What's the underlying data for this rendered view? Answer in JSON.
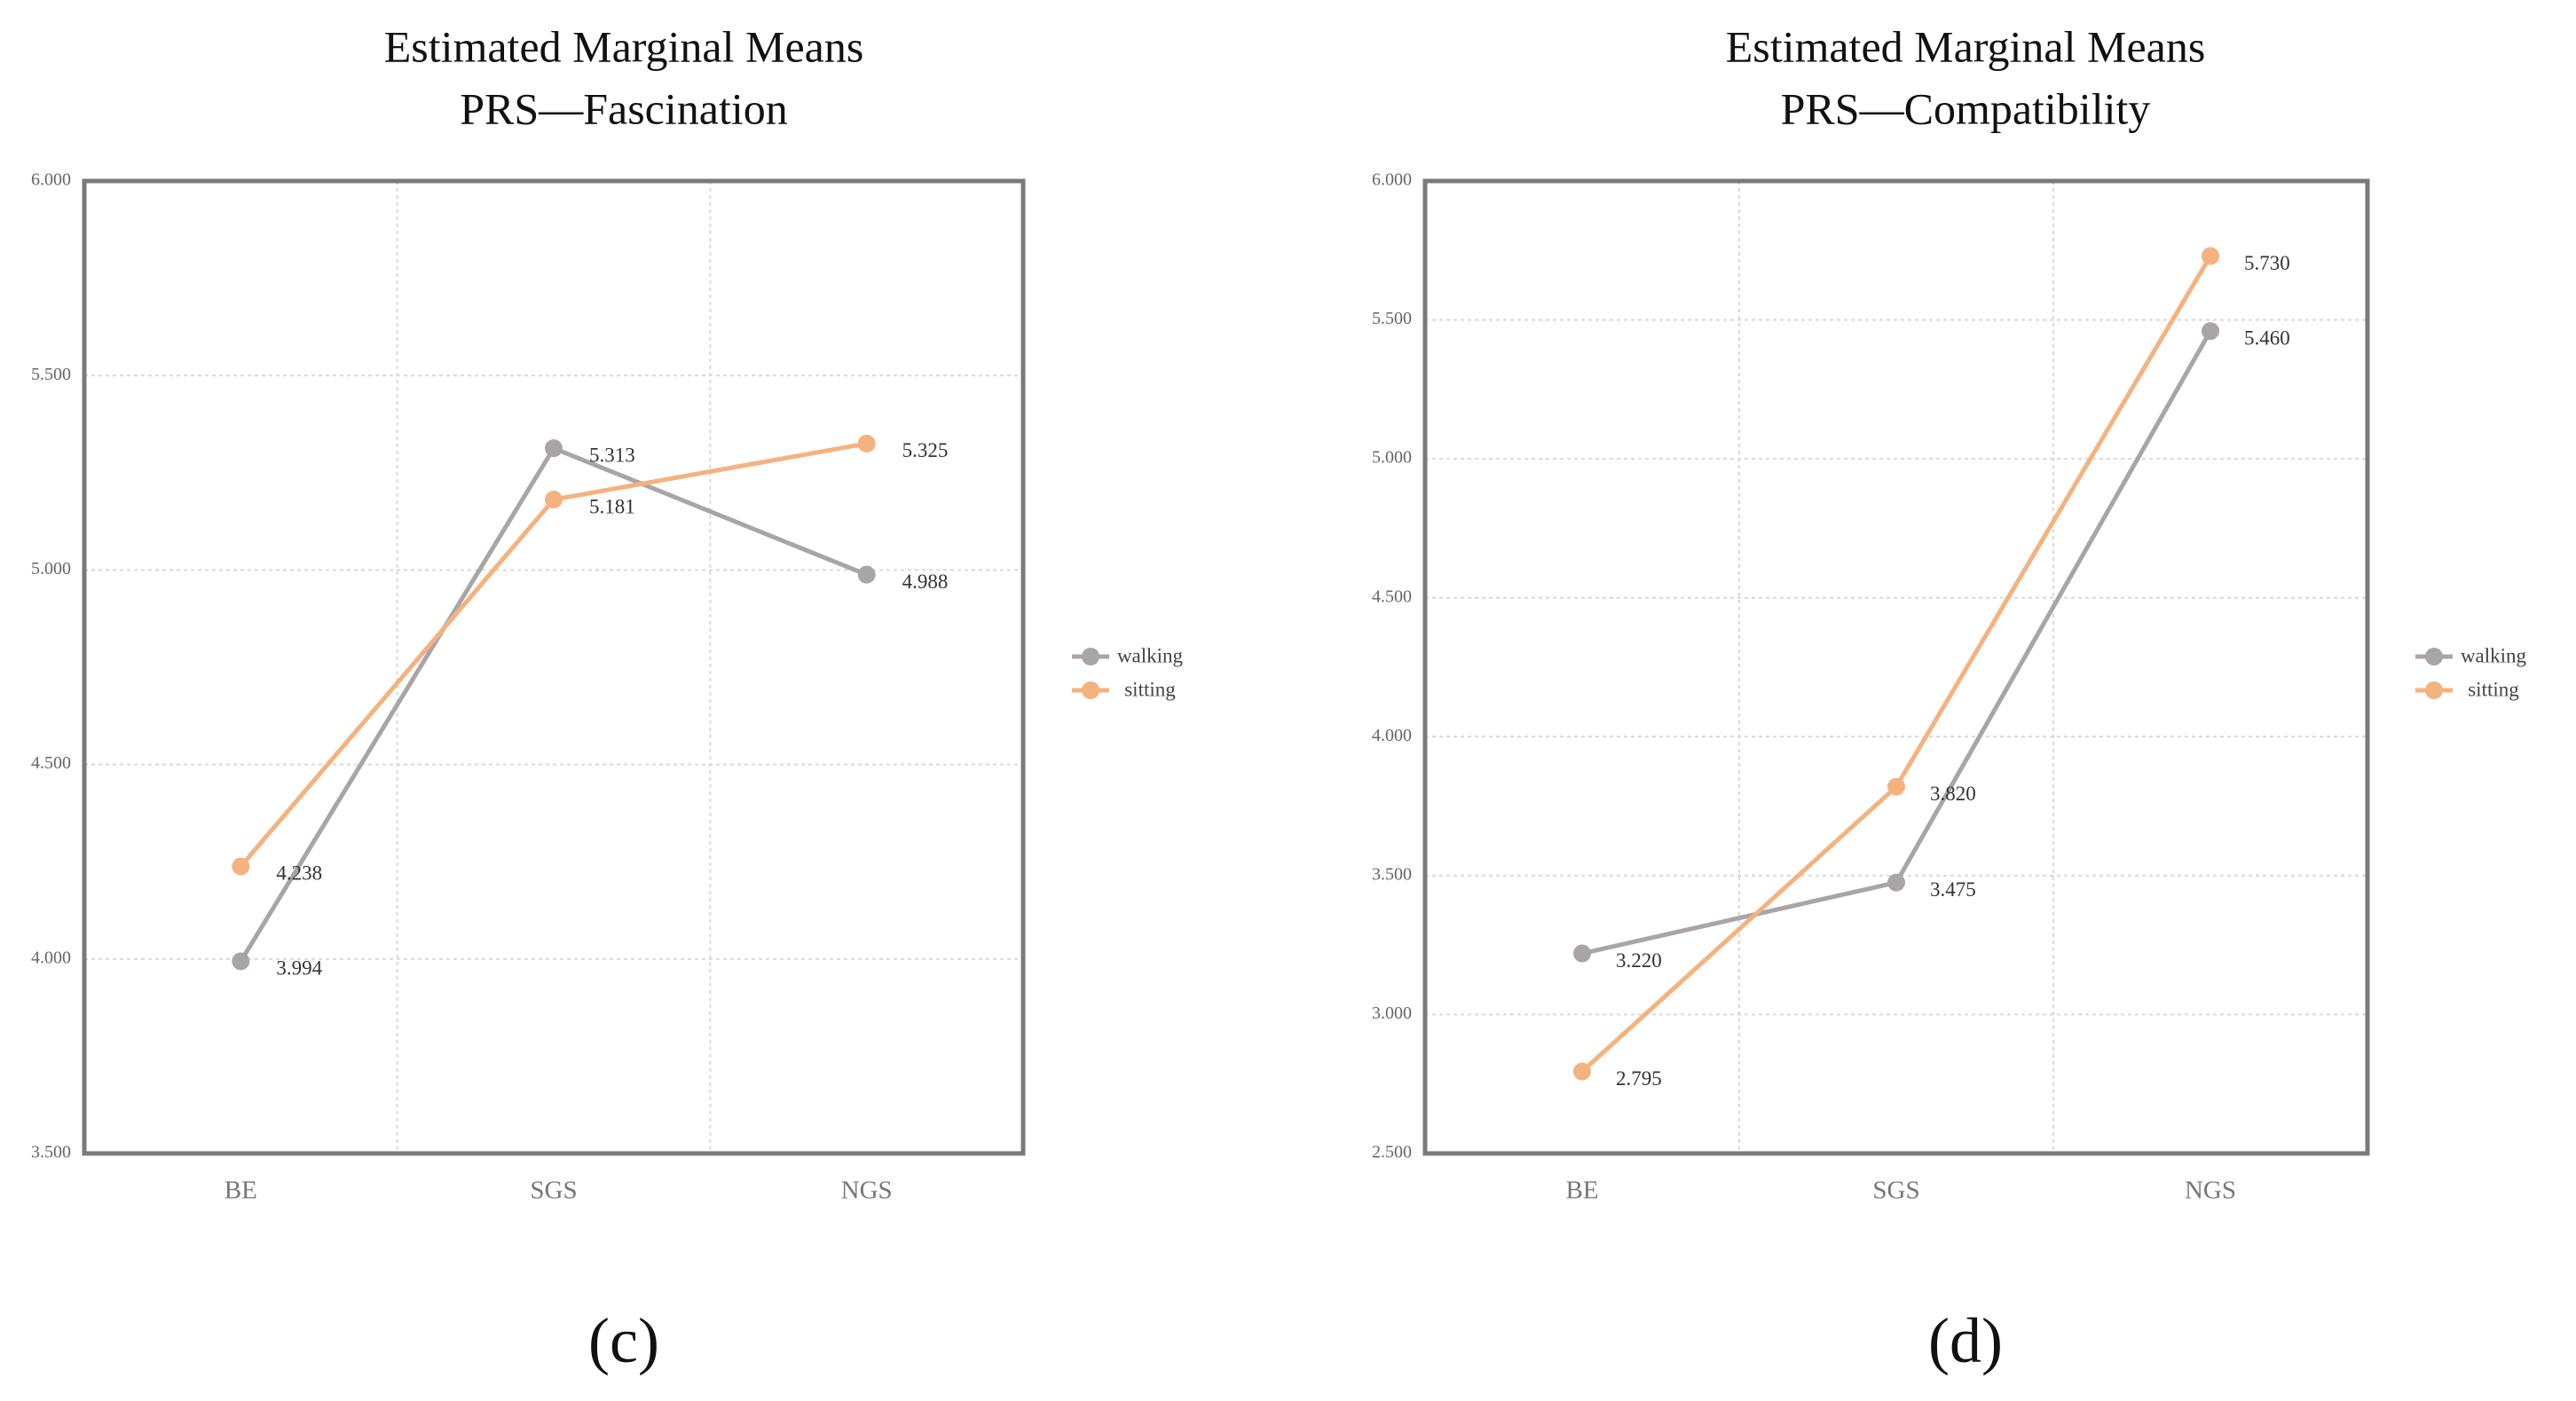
{
  "chart_data": [
    {
      "type": "line",
      "title": [
        "Estimated Marginal Means",
        "PRS—Fascination"
      ],
      "categories": [
        "BE",
        "SGS",
        "NGS"
      ],
      "ylim": [
        3.5,
        6.0
      ],
      "yticks": [
        "3.500",
        "4.000",
        "4.500",
        "5.000",
        "5.500",
        "6.000"
      ],
      "grid": true,
      "legend_position": "right",
      "series": [
        {
          "name": "walking",
          "color": "#a9a5a6",
          "values": [
            3.994,
            5.313,
            4.988
          ],
          "labels": [
            "3.994",
            "5.313",
            "4.988"
          ]
        },
        {
          "name": "sitting",
          "color": "#f4b27f",
          "values": [
            4.238,
            5.181,
            5.325
          ],
          "labels": [
            "4.238",
            "5.181",
            "5.325"
          ]
        }
      ],
      "panel_label": "(c)"
    },
    {
      "type": "line",
      "title": [
        "Estimated Marginal Means",
        "PRS—Compatibility"
      ],
      "categories": [
        "BE",
        "SGS",
        "NGS"
      ],
      "ylim": [
        2.5,
        6.0
      ],
      "yticks": [
        "2.500",
        "3.000",
        "3.500",
        "4.000",
        "4.500",
        "5.000",
        "5.500",
        "6.000"
      ],
      "grid": true,
      "legend_position": "right",
      "series": [
        {
          "name": "walking",
          "color": "#a9a5a6",
          "values": [
            3.22,
            3.475,
            5.46
          ],
          "labels": [
            "3.220",
            "3.475",
            "5.460"
          ]
        },
        {
          "name": "sitting",
          "color": "#f4b27f",
          "values": [
            2.795,
            3.82,
            5.73
          ],
          "labels": [
            "2.795",
            "3.820",
            "5.730"
          ]
        }
      ],
      "panel_label": "(d)"
    }
  ]
}
